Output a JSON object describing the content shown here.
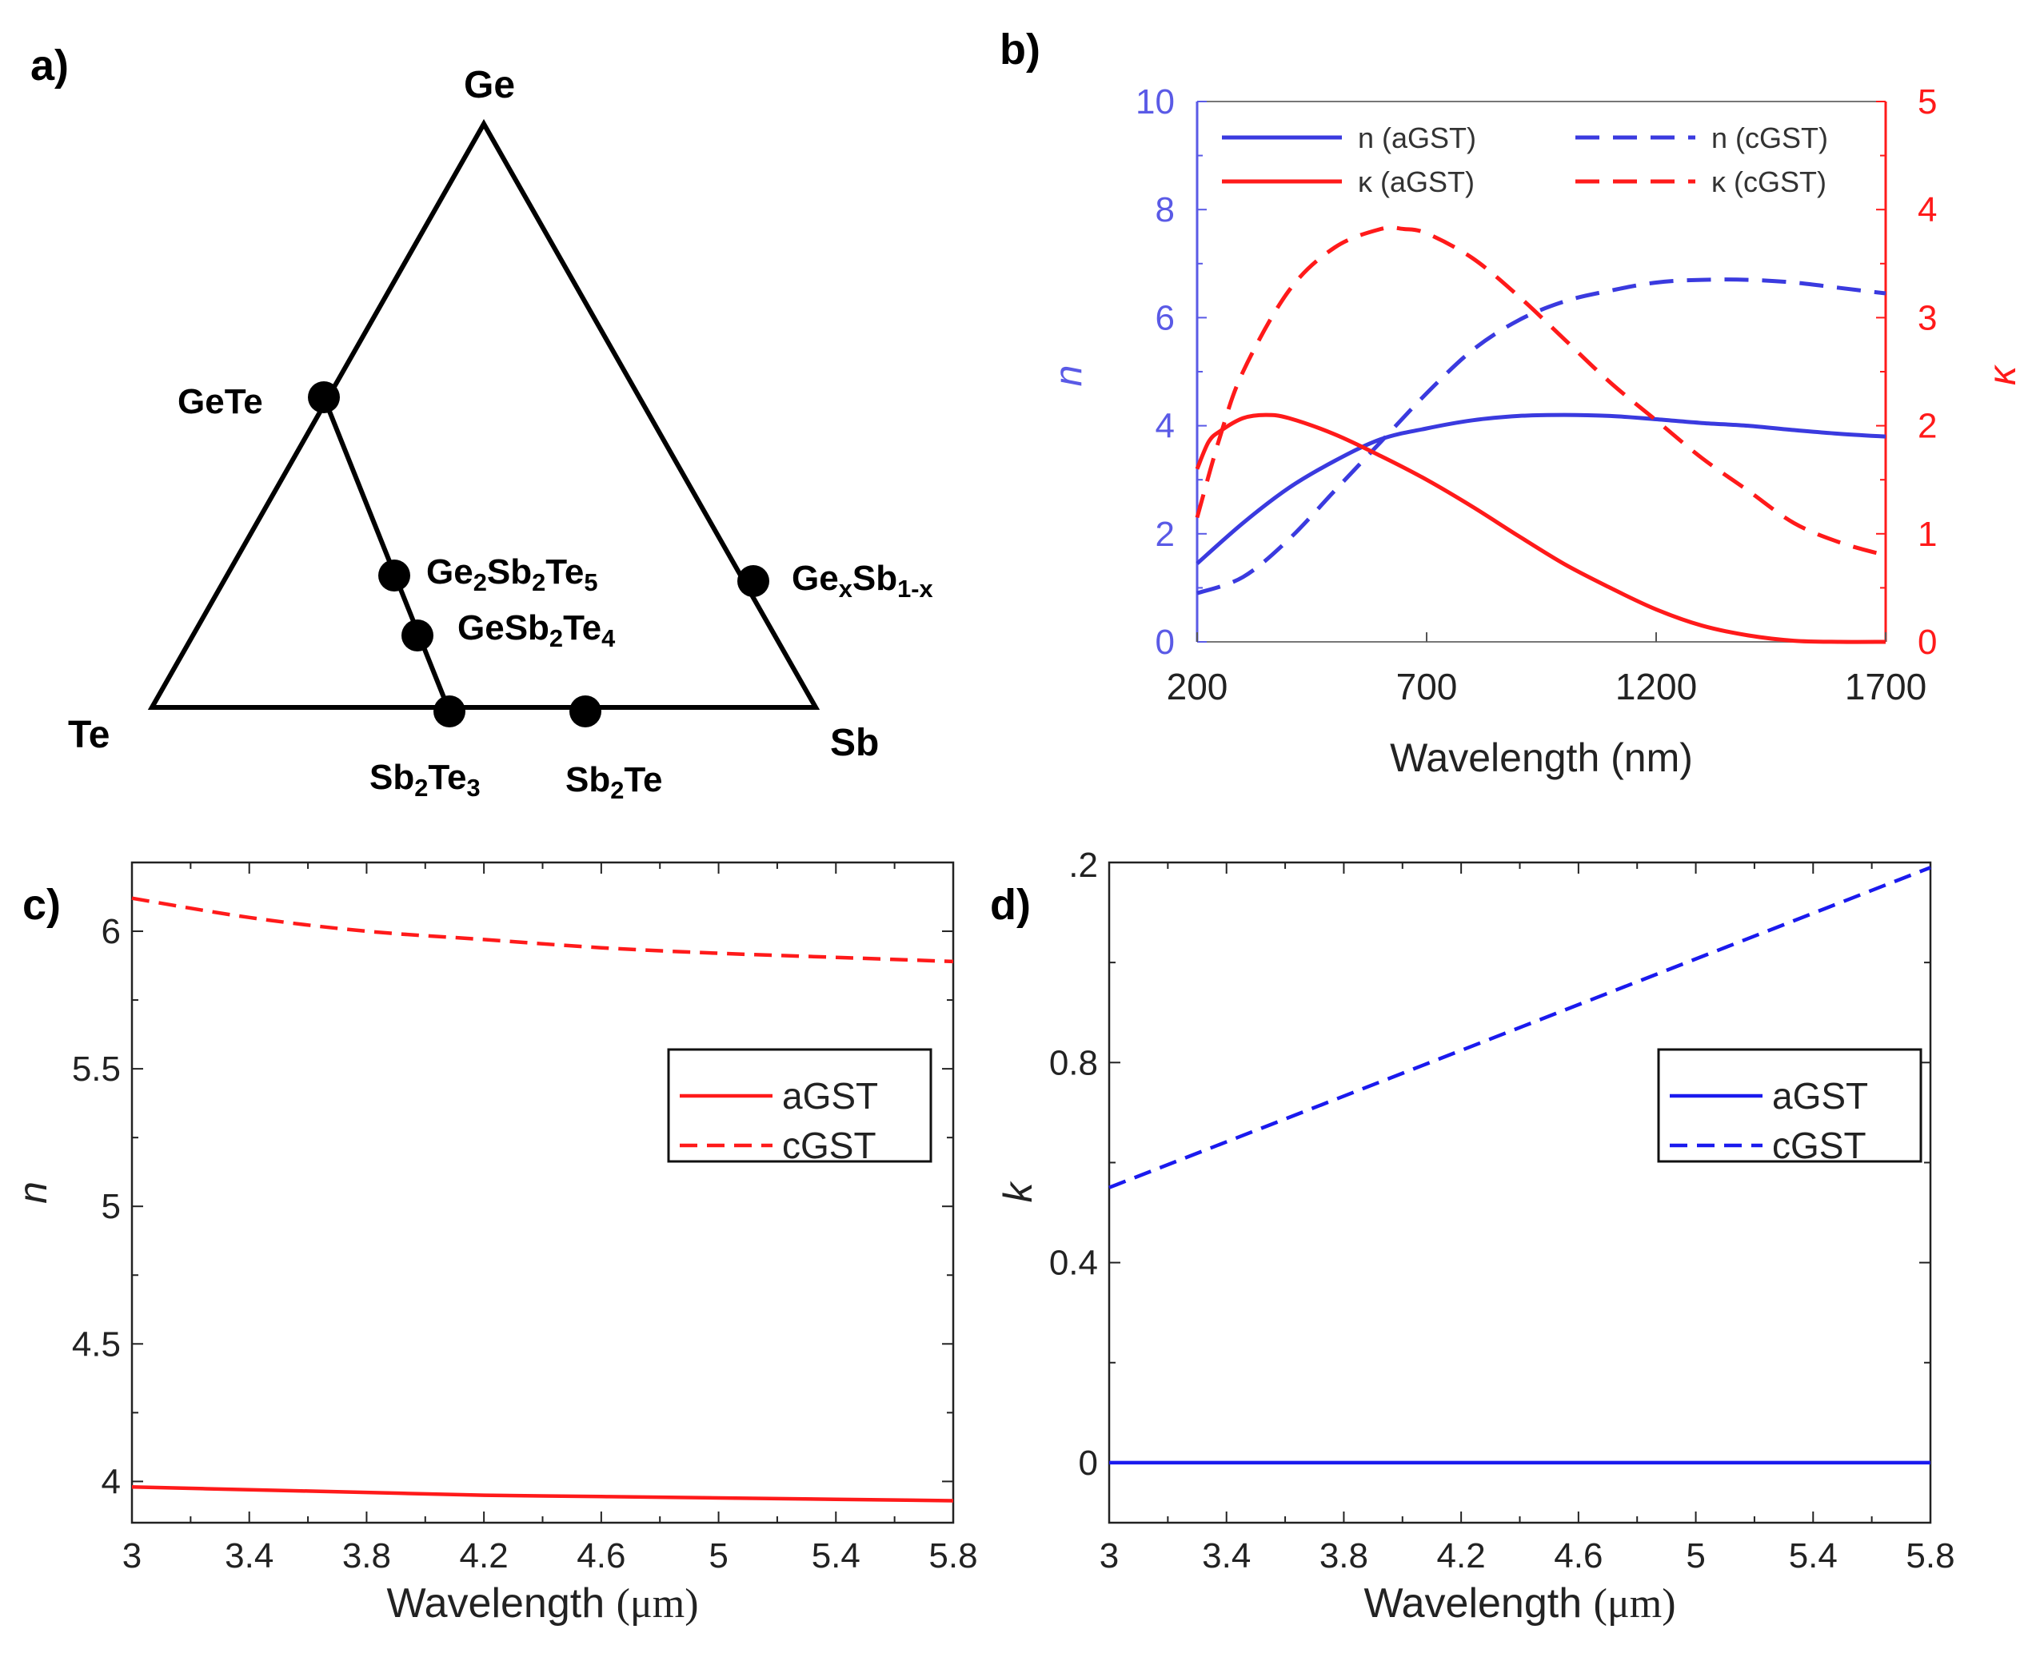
{
  "panels": {
    "a": {
      "letter": "a)",
      "vertices": {
        "top": "Ge",
        "left": "Te",
        "right": "Sb"
      },
      "points": [
        {
          "name": "GeTe",
          "label_html": "GeTe",
          "pos": [
            0.5,
            0.5
          ],
          "label_side": "left"
        },
        {
          "name": "Ge2Sb2Te5",
          "label_html": "Ge<tspan baseline-shift='-30%' font-size='0.7em'>2</tspan>Sb<tspan baseline-shift='-30%' font-size='0.7em'>2</tspan>Te<tspan baseline-shift='-30%' font-size='0.7em'>5</tspan>"
        },
        {
          "name": "GeSb2Te4",
          "label_html": "GeSb<tspan baseline-shift='-30%' font-size='0.7em'>2</tspan>Te<tspan baseline-shift='-30%' font-size='0.7em'>4</tspan>"
        },
        {
          "name": "Sb2Te3",
          "label_html": "Sb<tspan baseline-shift='-30%' font-size='0.7em'>2</tspan>Te<tspan baseline-shift='-30%' font-size='0.7em'>3</tspan>"
        },
        {
          "name": "Sb2Te",
          "label_html": "Sb<tspan baseline-shift='-30%' font-size='0.7em'>2</tspan>Te"
        },
        {
          "name": "GexSb1-x",
          "label_html": "Ge<tspan baseline-shift='-30%' font-size='0.7em'>x</tspan>Sb<tspan baseline-shift='-30%' font-size='0.7em'>1-x</tspan>"
        }
      ]
    },
    "b": {
      "letter": "b)"
    },
    "c": {
      "letter": "c)"
    },
    "d": {
      "letter": "d)"
    }
  },
  "chart_data": [
    {
      "id": "b",
      "type": "line",
      "xlabel": "Wavelength (nm)",
      "ylabel_left": "n",
      "ylabel_right": "κ",
      "xlim": [
        200,
        1700
      ],
      "ylim_left": [
        0,
        10
      ],
      "ylim_right": [
        0,
        5
      ],
      "xticks": [
        200,
        700,
        1200,
        1700
      ],
      "yticks_left": [
        0,
        2,
        4,
        6,
        8,
        10
      ],
      "yticks_right": [
        0,
        1,
        2,
        3,
        4,
        5
      ],
      "colors": {
        "n": "#3a3adf",
        "k": "#ff1a1a",
        "left_axis": "#5a5ae6",
        "right_axis": "#ff1a1a"
      },
      "legend": [
        "n (aGST)",
        "n (cGST)",
        "κ (aGST)",
        "κ (cGST)"
      ],
      "series": [
        {
          "name": "n (aGST)",
          "axis": "left",
          "style": "solid",
          "color": "#3a3adf",
          "x": [
            200,
            300,
            400,
            500,
            600,
            700,
            800,
            900,
            1000,
            1100,
            1200,
            1300,
            1400,
            1500,
            1600,
            1700
          ],
          "y": [
            1.45,
            2.2,
            2.85,
            3.35,
            3.75,
            3.95,
            4.1,
            4.18,
            4.2,
            4.18,
            4.12,
            4.05,
            4.0,
            3.92,
            3.85,
            3.8
          ]
        },
        {
          "name": "n (cGST)",
          "axis": "left",
          "style": "dashed",
          "color": "#3a3adf",
          "x": [
            200,
            300,
            400,
            500,
            600,
            700,
            800,
            900,
            1000,
            1100,
            1200,
            1300,
            1400,
            1500,
            1600,
            1700
          ],
          "y": [
            0.9,
            1.2,
            1.9,
            2.8,
            3.7,
            4.6,
            5.4,
            5.95,
            6.3,
            6.5,
            6.65,
            6.7,
            6.7,
            6.65,
            6.55,
            6.45
          ]
        },
        {
          "name": "κ (aGST)",
          "axis": "right",
          "style": "solid",
          "color": "#ff1a1a",
          "x": [
            200,
            225,
            250,
            300,
            350,
            400,
            500,
            600,
            700,
            800,
            900,
            1000,
            1100,
            1200,
            1300,
            1400,
            1500,
            1600,
            1700
          ],
          "y": [
            1.6,
            1.85,
            1.95,
            2.07,
            2.1,
            2.07,
            1.92,
            1.72,
            1.5,
            1.25,
            0.98,
            0.72,
            0.5,
            0.3,
            0.15,
            0.06,
            0.01,
            0.0,
            0.0
          ]
        },
        {
          "name": "κ (cGST)",
          "axis": "right",
          "style": "dashed",
          "color": "#ff1a1a",
          "x": [
            200,
            250,
            300,
            400,
            500,
            600,
            650,
            700,
            800,
            900,
            1000,
            1100,
            1200,
            1300,
            1400,
            1500,
            1600,
            1700
          ],
          "y": [
            1.15,
            1.9,
            2.5,
            3.25,
            3.65,
            3.82,
            3.82,
            3.78,
            3.55,
            3.2,
            2.8,
            2.4,
            2.05,
            1.7,
            1.4,
            1.1,
            0.92,
            0.8
          ]
        }
      ]
    },
    {
      "id": "c",
      "type": "line",
      "xlabel": "Wavelength (μm)",
      "ylabel": "n",
      "xlim": [
        3,
        5.8
      ],
      "ylim": [
        3.85,
        6.25
      ],
      "xticks": [
        3,
        3.4,
        3.8,
        4.2,
        4.6,
        5,
        5.4,
        5.8
      ],
      "yticks": [
        4,
        4.5,
        5,
        5.5,
        6
      ],
      "legend": [
        "aGST",
        "cGST"
      ],
      "series": [
        {
          "name": "aGST",
          "style": "solid",
          "color": "#ff1a1a",
          "x": [
            3,
            3.4,
            3.8,
            4.2,
            4.6,
            5,
            5.4,
            5.8
          ],
          "y": [
            3.98,
            3.97,
            3.96,
            3.95,
            3.945,
            3.94,
            3.935,
            3.93
          ]
        },
        {
          "name": "cGST",
          "style": "dashed",
          "color": "#ff1a1a",
          "x": [
            3,
            3.4,
            3.8,
            4.2,
            4.6,
            5,
            5.4,
            5.8
          ],
          "y": [
            6.12,
            6.05,
            6.0,
            5.97,
            5.94,
            5.92,
            5.905,
            5.89
          ]
        }
      ]
    },
    {
      "id": "d",
      "type": "line",
      "xlabel": "Wavelength (μm)",
      "ylabel": "k",
      "xlim": [
        3,
        5.8
      ],
      "ylim": [
        -0.12,
        1.2
      ],
      "xticks": [
        3,
        3.4,
        3.8,
        4.2,
        4.6,
        5,
        5.4,
        5.8
      ],
      "yticks": [
        0,
        0.4,
        0.8
      ],
      "ytick_labels": [
        "0",
        "0.4",
        "0.8"
      ],
      "top_label": ".2",
      "legend": [
        "aGST",
        "cGST"
      ],
      "series": [
        {
          "name": "aGST",
          "style": "solid",
          "color": "#1a1aee",
          "x": [
            3,
            5.8
          ],
          "y": [
            0,
            0
          ]
        },
        {
          "name": "cGST",
          "style": "dashed",
          "color": "#1a1aee",
          "x": [
            3,
            5.8
          ],
          "y": [
            0.55,
            1.19
          ]
        }
      ]
    }
  ]
}
